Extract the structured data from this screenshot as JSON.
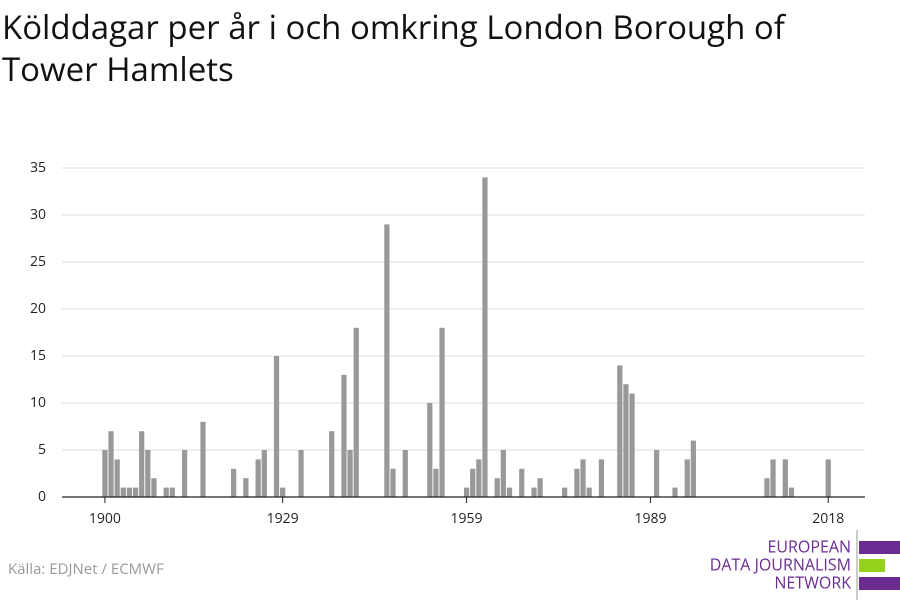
{
  "chart_data": {
    "type": "bar",
    "title": "Kölddagar per år i och omkring London Borough of Tower Hamlets",
    "source": "Källa: EDJNet / ECMWF",
    "logo": [
      "EUROPEAN",
      "DATA JOURNALISM",
      "NETWORK"
    ],
    "color": "#999999",
    "x": [
      1900,
      1901,
      1902,
      1903,
      1904,
      1905,
      1906,
      1907,
      1908,
      1910,
      1911,
      1913,
      1916,
      1921,
      1923,
      1925,
      1926,
      1928,
      1929,
      1932,
      1937,
      1939,
      1940,
      1941,
      1946,
      1947,
      1949,
      1953,
      1954,
      1955,
      1959,
      1960,
      1961,
      1962,
      1964,
      1965,
      1966,
      1968,
      1970,
      1971,
      1975,
      1977,
      1978,
      1979,
      1981,
      1984,
      1985,
      1986,
      1990,
      1993,
      1995,
      1996,
      2008,
      2009,
      2011,
      2012,
      2018
    ],
    "values": [
      5,
      7,
      4,
      1,
      1,
      1,
      7,
      5,
      2,
      1,
      1,
      5,
      8,
      3,
      2,
      4,
      5,
      15,
      1,
      5,
      7,
      13,
      5,
      18,
      29,
      3,
      5,
      10,
      3,
      18,
      1,
      3,
      4,
      34,
      2,
      5,
      1,
      3,
      1,
      2,
      1,
      3,
      4,
      1,
      4,
      14,
      12,
      11,
      5,
      1,
      4,
      6,
      2,
      4,
      4,
      1,
      4
    ],
    "xlim": [
      1893,
      2024
    ],
    "xticks": [
      1900,
      1929,
      1959,
      1989,
      2018
    ],
    "ylim": [
      0,
      35
    ],
    "yticks": [
      0,
      5,
      10,
      15,
      20,
      25,
      30,
      35
    ],
    "grid": true
  }
}
